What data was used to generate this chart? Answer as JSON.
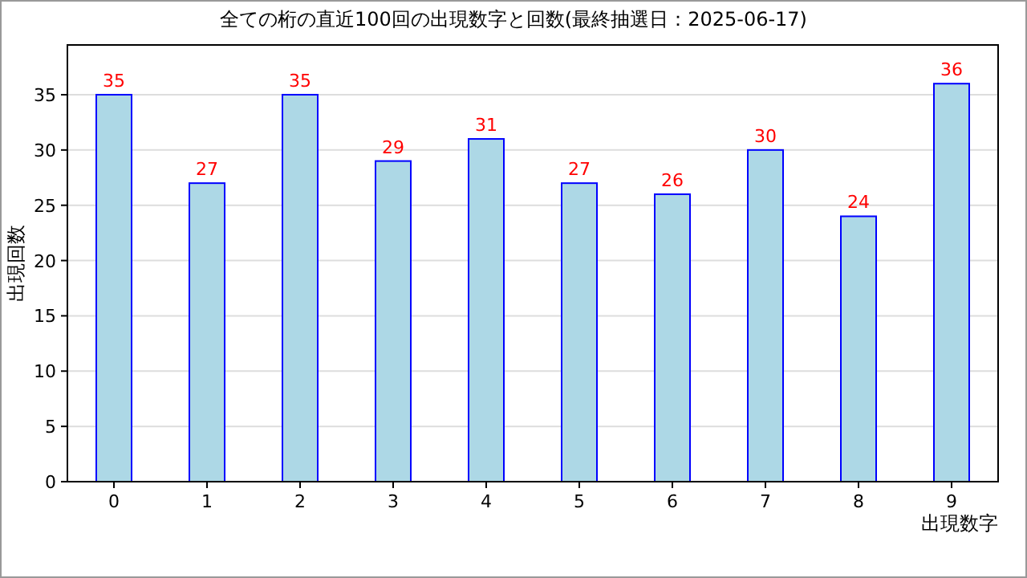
{
  "chart_data": {
    "type": "bar",
    "title": "全ての桁の直近100回の出現数字と回数(最終抽選日：2025-06-17)",
    "xlabel": "出現数字",
    "ylabel": "出現回数",
    "categories": [
      "0",
      "1",
      "2",
      "3",
      "4",
      "5",
      "6",
      "7",
      "8",
      "9"
    ],
    "values": [
      35,
      27,
      35,
      29,
      31,
      27,
      26,
      30,
      24,
      36
    ],
    "color": "#add8e6",
    "ylim": [
      0,
      39.5
    ],
    "yticks": [
      0,
      5,
      10,
      15,
      20,
      25,
      30,
      35
    ],
    "grid": "y",
    "data_labels": true
  }
}
